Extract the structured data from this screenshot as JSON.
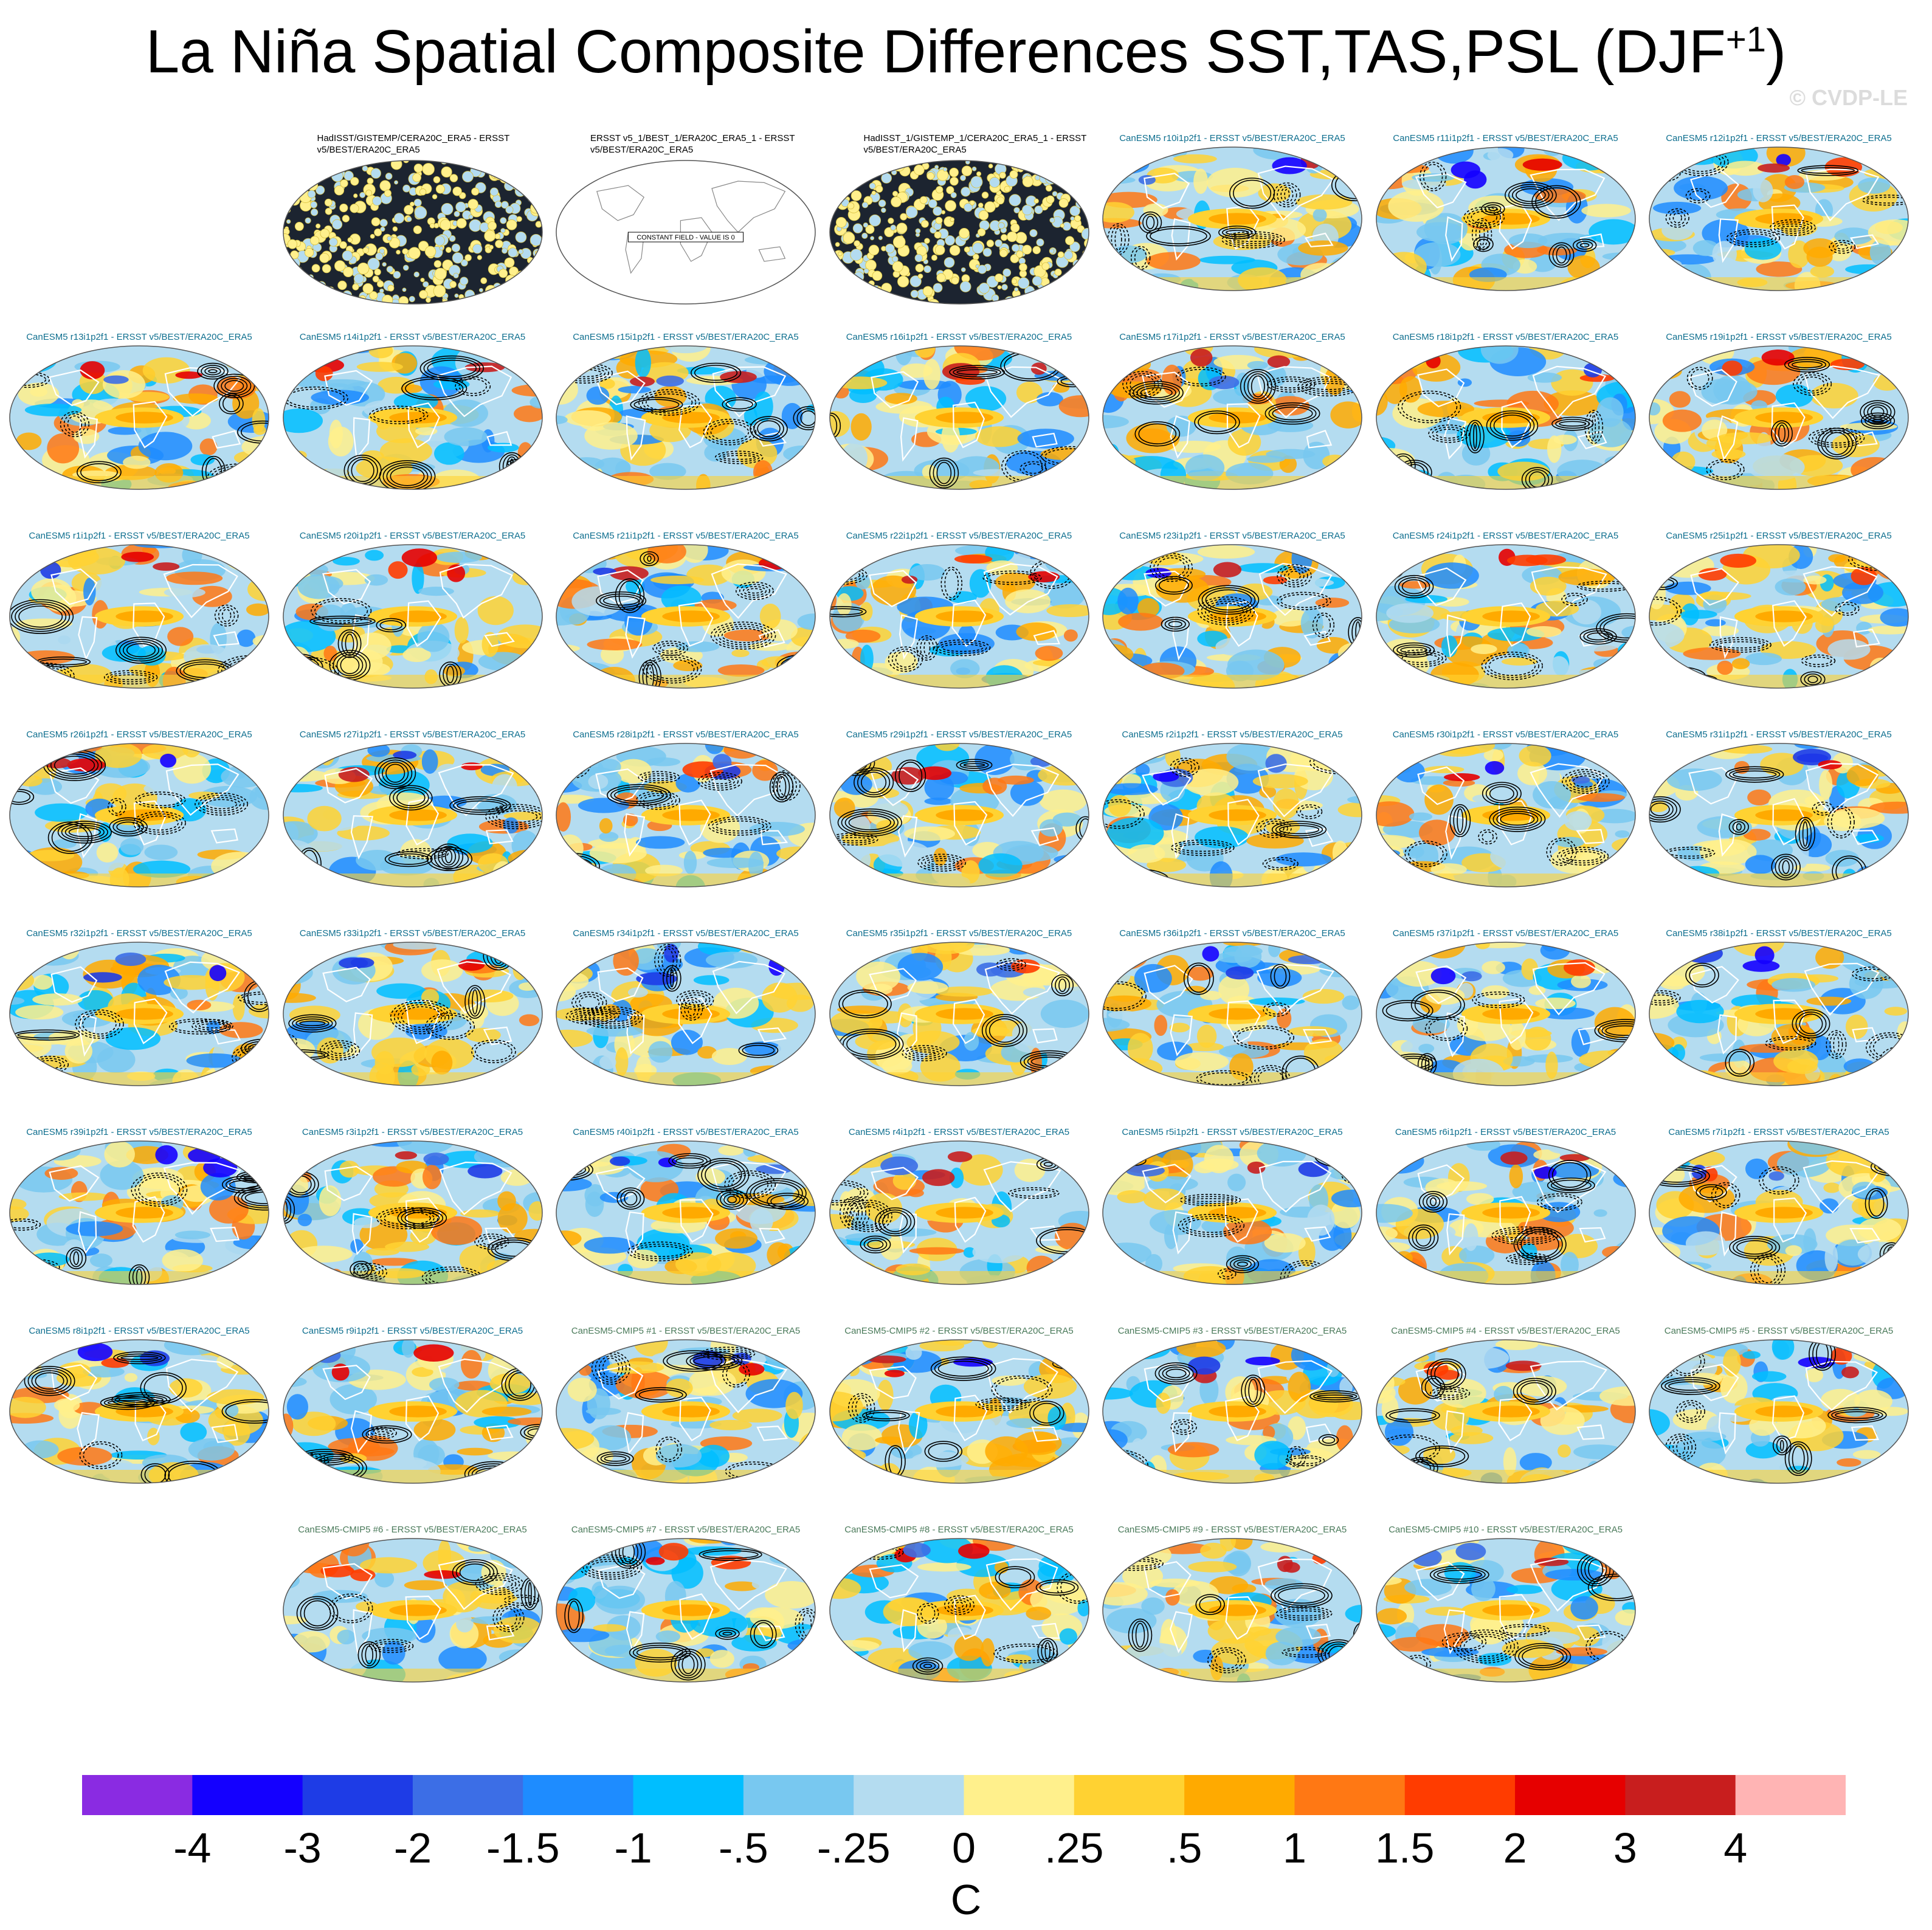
{
  "title": "La Niña Spatial Composite Differences SST,TAS,PSL (DJF",
  "title_superscript": "+1",
  "title_close": ")",
  "watermark": "© CVDP-LE",
  "chart_data": {
    "type": "heatmap",
    "title": "La Niña Spatial Composite Differences SST,TAS,PSL (DJF+1)",
    "description_fields": [
      "SST",
      "TAS",
      "PSL"
    ],
    "panels": [
      {
        "label": "HadISST/GISTEMP/CERA20C_ERA5 - ERSST v5/BEST/ERA20C_ERA5",
        "kind": "obs",
        "style": "speckle",
        "seed": 11
      },
      {
        "label": "ERSST v5_1/BEST_1/ERA20C_ERA5_1 - ERSST v5/BEST/ERA20C_ERA5",
        "kind": "obs",
        "style": "constant",
        "seed": 12,
        "note": "CONSTANT FIELD - VALUE IS 0"
      },
      {
        "label": "HadISST_1/GISTEMP_1/CERA20C_ERA5_1 - ERSST v5/BEST/ERA20C_ERA5",
        "kind": "obs",
        "style": "speckle",
        "seed": 13
      },
      {
        "label": "CanESM5 r10i1p2f1 - ERSST v5/BEST/ERA20C_ERA5",
        "kind": "mdl",
        "style": "field",
        "seed": 21
      },
      {
        "label": "CanESM5 r11i1p2f1 - ERSST v5/BEST/ERA20C_ERA5",
        "kind": "mdl",
        "style": "field",
        "seed": 22
      },
      {
        "label": "CanESM5 r12i1p2f1 - ERSST v5/BEST/ERA20C_ERA5",
        "kind": "mdl",
        "style": "field",
        "seed": 23
      },
      {
        "label": "CanESM5 r13i1p2f1 - ERSST v5/BEST/ERA20C_ERA5",
        "kind": "mdl",
        "style": "field",
        "seed": 24
      },
      {
        "label": "CanESM5 r14i1p2f1 - ERSST v5/BEST/ERA20C_ERA5",
        "kind": "mdl",
        "style": "field",
        "seed": 25
      },
      {
        "label": "CanESM5 r15i1p2f1 - ERSST v5/BEST/ERA20C_ERA5",
        "kind": "mdl",
        "style": "field",
        "seed": 26
      },
      {
        "label": "CanESM5 r16i1p2f1 - ERSST v5/BEST/ERA20C_ERA5",
        "kind": "mdl",
        "style": "field",
        "seed": 27
      },
      {
        "label": "CanESM5 r17i1p2f1 - ERSST v5/BEST/ERA20C_ERA5",
        "kind": "mdl",
        "style": "field",
        "seed": 28
      },
      {
        "label": "CanESM5 r18i1p2f1 - ERSST v5/BEST/ERA20C_ERA5",
        "kind": "mdl",
        "style": "field",
        "seed": 29
      },
      {
        "label": "CanESM5 r19i1p2f1 - ERSST v5/BEST/ERA20C_ERA5",
        "kind": "mdl",
        "style": "field",
        "seed": 30
      },
      {
        "label": "CanESM5 r1i1p2f1 - ERSST v5/BEST/ERA20C_ERA5",
        "kind": "mdl",
        "style": "field",
        "seed": 31
      },
      {
        "label": "CanESM5 r20i1p2f1 - ERSST v5/BEST/ERA20C_ERA5",
        "kind": "mdl",
        "style": "field",
        "seed": 32
      },
      {
        "label": "CanESM5 r21i1p2f1 - ERSST v5/BEST/ERA20C_ERA5",
        "kind": "mdl",
        "style": "field",
        "seed": 33
      },
      {
        "label": "CanESM5 r22i1p2f1 - ERSST v5/BEST/ERA20C_ERA5",
        "kind": "mdl",
        "style": "field",
        "seed": 34
      },
      {
        "label": "CanESM5 r23i1p2f1 - ERSST v5/BEST/ERA20C_ERA5",
        "kind": "mdl",
        "style": "field",
        "seed": 35
      },
      {
        "label": "CanESM5 r24i1p2f1 - ERSST v5/BEST/ERA20C_ERA5",
        "kind": "mdl",
        "style": "field",
        "seed": 36
      },
      {
        "label": "CanESM5 r25i1p2f1 - ERSST v5/BEST/ERA20C_ERA5",
        "kind": "mdl",
        "style": "field",
        "seed": 37
      },
      {
        "label": "CanESM5 r26i1p2f1 - ERSST v5/BEST/ERA20C_ERA5",
        "kind": "mdl",
        "style": "field",
        "seed": 38
      },
      {
        "label": "CanESM5 r27i1p2f1 - ERSST v5/BEST/ERA20C_ERA5",
        "kind": "mdl",
        "style": "field",
        "seed": 39
      },
      {
        "label": "CanESM5 r28i1p2f1 - ERSST v5/BEST/ERA20C_ERA5",
        "kind": "mdl",
        "style": "field",
        "seed": 40
      },
      {
        "label": "CanESM5 r29i1p2f1 - ERSST v5/BEST/ERA20C_ERA5",
        "kind": "mdl",
        "style": "field",
        "seed": 41
      },
      {
        "label": "CanESM5 r2i1p2f1 - ERSST v5/BEST/ERA20C_ERA5",
        "kind": "mdl",
        "style": "field",
        "seed": 42
      },
      {
        "label": "CanESM5 r30i1p2f1 - ERSST v5/BEST/ERA20C_ERA5",
        "kind": "mdl",
        "style": "field",
        "seed": 43
      },
      {
        "label": "CanESM5 r31i1p2f1 - ERSST v5/BEST/ERA20C_ERA5",
        "kind": "mdl",
        "style": "field",
        "seed": 44
      },
      {
        "label": "CanESM5 r32i1p2f1 - ERSST v5/BEST/ERA20C_ERA5",
        "kind": "mdl",
        "style": "field",
        "seed": 45
      },
      {
        "label": "CanESM5 r33i1p2f1 - ERSST v5/BEST/ERA20C_ERA5",
        "kind": "mdl",
        "style": "field",
        "seed": 46
      },
      {
        "label": "CanESM5 r34i1p2f1 - ERSST v5/BEST/ERA20C_ERA5",
        "kind": "mdl",
        "style": "field",
        "seed": 47
      },
      {
        "label": "CanESM5 r35i1p2f1 - ERSST v5/BEST/ERA20C_ERA5",
        "kind": "mdl",
        "style": "field",
        "seed": 48
      },
      {
        "label": "CanESM5 r36i1p2f1 - ERSST v5/BEST/ERA20C_ERA5",
        "kind": "mdl",
        "style": "field",
        "seed": 49
      },
      {
        "label": "CanESM5 r37i1p2f1 - ERSST v5/BEST/ERA20C_ERA5",
        "kind": "mdl",
        "style": "field",
        "seed": 50
      },
      {
        "label": "CanESM5 r38i1p2f1 - ERSST v5/BEST/ERA20C_ERA5",
        "kind": "mdl",
        "style": "field",
        "seed": 51
      },
      {
        "label": "CanESM5 r39i1p2f1 - ERSST v5/BEST/ERA20C_ERA5",
        "kind": "mdl",
        "style": "field",
        "seed": 52
      },
      {
        "label": "CanESM5 r3i1p2f1 - ERSST v5/BEST/ERA20C_ERA5",
        "kind": "mdl",
        "style": "field",
        "seed": 53
      },
      {
        "label": "CanESM5 r40i1p2f1 - ERSST v5/BEST/ERA20C_ERA5",
        "kind": "mdl",
        "style": "field",
        "seed": 54
      },
      {
        "label": "CanESM5 r4i1p2f1 - ERSST v5/BEST/ERA20C_ERA5",
        "kind": "mdl",
        "style": "field",
        "seed": 55
      },
      {
        "label": "CanESM5 r5i1p2f1 - ERSST v5/BEST/ERA20C_ERA5",
        "kind": "mdl",
        "style": "field",
        "seed": 56
      },
      {
        "label": "CanESM5 r6i1p2f1 - ERSST v5/BEST/ERA20C_ERA5",
        "kind": "mdl",
        "style": "field",
        "seed": 57
      },
      {
        "label": "CanESM5 r7i1p2f1 - ERSST v5/BEST/ERA20C_ERA5",
        "kind": "mdl",
        "style": "field",
        "seed": 58
      },
      {
        "label": "CanESM5 r8i1p2f1 - ERSST v5/BEST/ERA20C_ERA5",
        "kind": "mdl",
        "style": "field",
        "seed": 59
      },
      {
        "label": "CanESM5 r9i1p2f1 - ERSST v5/BEST/ERA20C_ERA5",
        "kind": "mdl",
        "style": "field",
        "seed": 60
      },
      {
        "label": "CanESM5-CMIP5 #1 - ERSST v5/BEST/ERA20C_ERA5",
        "kind": "cmip",
        "style": "field",
        "seed": 61
      },
      {
        "label": "CanESM5-CMIP5 #2 - ERSST v5/BEST/ERA20C_ERA5",
        "kind": "cmip",
        "style": "field",
        "seed": 62
      },
      {
        "label": "CanESM5-CMIP5 #3 - ERSST v5/BEST/ERA20C_ERA5",
        "kind": "cmip",
        "style": "field",
        "seed": 63
      },
      {
        "label": "CanESM5-CMIP5 #4 - ERSST v5/BEST/ERA20C_ERA5",
        "kind": "cmip",
        "style": "field",
        "seed": 64
      },
      {
        "label": "CanESM5-CMIP5 #5 - ERSST v5/BEST/ERA20C_ERA5",
        "kind": "cmip",
        "style": "field",
        "seed": 65
      },
      {
        "label": "CanESM5-CMIP5 #6 - ERSST v5/BEST/ERA20C_ERA5",
        "kind": "cmip",
        "style": "field",
        "seed": 66
      },
      {
        "label": "CanESM5-CMIP5 #7 - ERSST v5/BEST/ERA20C_ERA5",
        "kind": "cmip",
        "style": "field",
        "seed": 67
      },
      {
        "label": "CanESM5-CMIP5 #8 - ERSST v5/BEST/ERA20C_ERA5",
        "kind": "cmip",
        "style": "field",
        "seed": 68
      },
      {
        "label": "CanESM5-CMIP5 #9 - ERSST v5/BEST/ERA20C_ERA5",
        "kind": "cmip",
        "style": "field",
        "seed": 69
      },
      {
        "label": "CanESM5-CMIP5 #10 - ERSST v5/BEST/ERA20C_ERA5",
        "kind": "cmip",
        "style": "field",
        "seed": 70
      }
    ],
    "colorbar": {
      "unit": "C",
      "levels": [
        "-4",
        "-3",
        "-2",
        "-1.5",
        "-1",
        "-.5",
        "-.25",
        "0",
        ".25",
        ".5",
        "1",
        "1.5",
        "2",
        "3",
        "4"
      ],
      "colors": [
        "#8a2be2",
        "#1400ff",
        "#1e3ce6",
        "#3c6ee6",
        "#1e8cff",
        "#00beff",
        "#78c8f0",
        "#b4dcf0",
        "#fff08c",
        "#ffd232",
        "#ffaa00",
        "#ff7814",
        "#ff3c00",
        "#e60000",
        "#c81e1e",
        "#ffb4b4"
      ]
    },
    "continent_color": "#ffffff",
    "contour_color": "#000000"
  }
}
